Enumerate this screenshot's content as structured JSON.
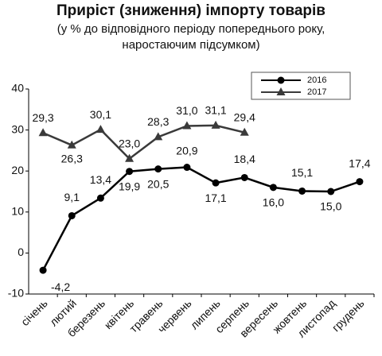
{
  "chart_data": {
    "type": "line",
    "title": "Приріст (зниження) імпорту товарів",
    "subtitle": [
      "(у % до відповідного періоду попереднього року,",
      "наростаючим підсумком)"
    ],
    "categories": [
      "січень",
      "лютий",
      "березень",
      "квітень",
      "травень",
      "червень",
      "липень",
      "серпень",
      "вересень",
      "жовтень",
      "листопад",
      "грудень"
    ],
    "series": [
      {
        "name": "2016",
        "color": "#000000",
        "marker": "circle",
        "values": [
          -4.2,
          9.1,
          13.4,
          19.9,
          20.5,
          20.9,
          17.1,
          18.4,
          16.0,
          15.1,
          15.0,
          17.4
        ],
        "value_labels": [
          "-4,2",
          "9,1",
          "13,4",
          "19,9",
          "20,5",
          "20,9",
          "17,1",
          "18,4",
          "16,0",
          "15,1",
          "15,0",
          "17,4"
        ]
      },
      {
        "name": "2017",
        "color": "#3a3a3a",
        "marker": "triangle",
        "values": [
          29.3,
          26.3,
          30.1,
          23.0,
          28.3,
          31.0,
          31.1,
          29.4,
          null,
          null,
          null,
          null
        ],
        "value_labels": [
          "29,3",
          "26,3",
          "30,1",
          "23,0",
          "28,3",
          "31,0",
          "31,1",
          "29,4",
          null,
          null,
          null,
          null
        ]
      }
    ],
    "ylim": [
      -10,
      40
    ],
    "yticks": [
      -10,
      0,
      10,
      20,
      30,
      40
    ],
    "grid": false,
    "legend": "top-right"
  }
}
